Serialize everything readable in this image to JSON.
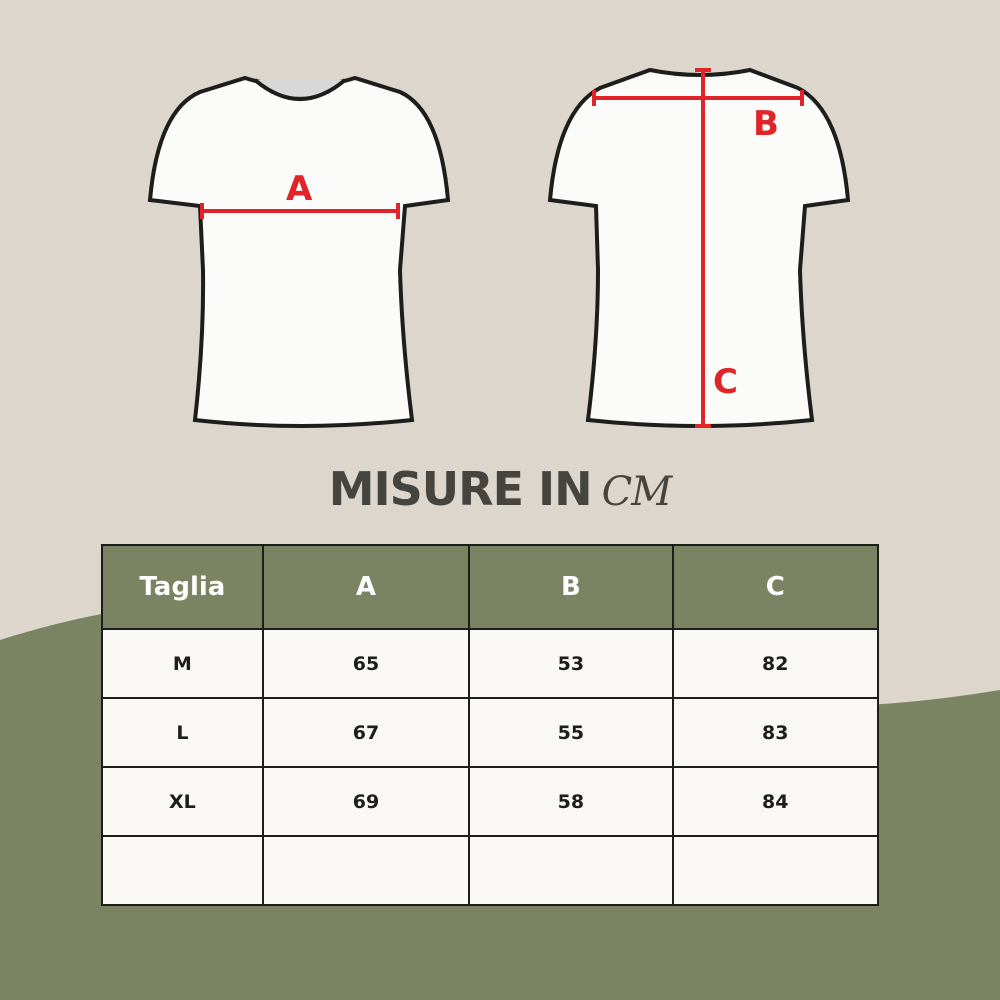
{
  "colors": {
    "background": "#dcd6cc",
    "accent_green": "#7b8462",
    "measure_red": "#e0242a",
    "text_dark": "#45443f"
  },
  "diagram": {
    "front_label": "A",
    "back_width_label": "B",
    "back_length_label": "C"
  },
  "title": {
    "main": "MISURE IN",
    "unit": "CM"
  },
  "table": {
    "headers": [
      "Taglia",
      "A",
      "B",
      "C"
    ],
    "rows": [
      [
        "M",
        "65",
        "53",
        "82"
      ],
      [
        "L",
        "67",
        "55",
        "83"
      ],
      [
        "XL",
        "69",
        "58",
        "84"
      ],
      [
        "",
        "",
        "",
        ""
      ]
    ]
  }
}
